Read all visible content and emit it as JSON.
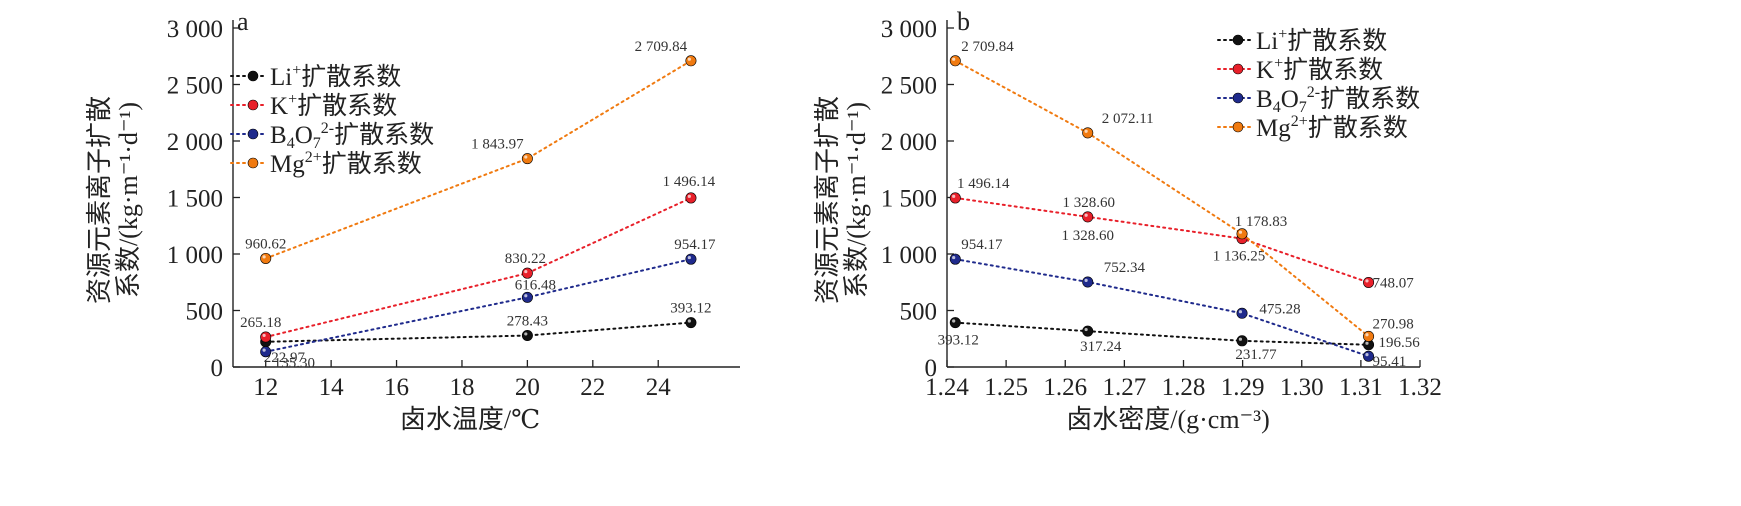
{
  "chart_data": [
    {
      "panel_label": "a",
      "type": "line",
      "xlabel": "卤水温度/℃",
      "ylabel_line1": "资源元素离子扩散",
      "ylabel_line2": "系数/(kg·m⁻¹·d⁻¹)",
      "xlim": [
        11,
        26.5
      ],
      "ylim": [
        0,
        3000
      ],
      "xticks": [
        12,
        14,
        16,
        18,
        20,
        22,
        24
      ],
      "xtick_labels": [
        "12",
        "14",
        "16",
        "18",
        "20",
        "22",
        "24"
      ],
      "yticks": [
        0,
        500,
        1000,
        1500,
        2000,
        2500,
        3000
      ],
      "ytick_labels": [
        "0",
        "500",
        "1 000",
        "1 500",
        "2 000",
        "2 500",
        "3 000"
      ],
      "legend_position": "top-left",
      "series": [
        {
          "name": "Li⁺扩散系数",
          "name_base": "Li",
          "name_sup": "+",
          "name_tail": "扩散系数",
          "color": "#111111",
          "x": [
            12,
            20,
            25
          ],
          "y": [
            222.97,
            278.43,
            393.12
          ],
          "labels": [
            "222.97",
            "278.43",
            "393.12"
          ]
        },
        {
          "name": "K⁺扩散系数",
          "name_base": "K",
          "name_sup": "+",
          "name_tail": "扩散系数",
          "color": "#e8202a",
          "x": [
            12,
            20,
            25
          ],
          "y": [
            265.18,
            830.22,
            1496.14
          ],
          "labels": [
            "265.18",
            "830.22",
            "1 496.14"
          ]
        },
        {
          "name": "B₄O₇²⁻扩散系数",
          "name_base": "B",
          "name_sub": "4",
          "name_mid": "O",
          "name_sub2": "7",
          "name_sup": "2-",
          "name_tail": "扩散系数",
          "color": "#1f2a8c",
          "x": [
            12,
            20,
            25
          ],
          "y": [
            135.3,
            616.48,
            954.17
          ],
          "labels": [
            "135.30",
            "616.48",
            "954.17"
          ]
        },
        {
          "name": "Mg²⁺扩散系数",
          "name_base": "Mg",
          "name_sup": "2+",
          "name_tail": "扩散系数",
          "color": "#f07a10",
          "x": [
            12,
            20,
            25
          ],
          "y": [
            960.62,
            1843.97,
            2709.84
          ],
          "labels": [
            "960.62",
            "1 843.97",
            "2 709.84"
          ]
        }
      ]
    },
    {
      "panel_label": "b",
      "type": "line",
      "xlabel": "卤水密度/(g·cm⁻³)",
      "ylabel_line1": "资源元素离子扩散",
      "ylabel_line2": "系数/(kg·m⁻¹·d⁻¹)",
      "xlim": [
        1.24,
        1.32
      ],
      "ylim": [
        0,
        3000
      ],
      "xticks": [
        1.24,
        1.25,
        1.26,
        1.27,
        1.28,
        1.29,
        1.3,
        1.31,
        1.32
      ],
      "xtick_labels": [
        "1.24",
        "1.25",
        "1.26",
        "1.27",
        "1.28",
        "1.29",
        "1.30",
        "1.31",
        "1.32"
      ],
      "yticks": [
        0,
        500,
        1000,
        1500,
        2000,
        2500,
        3000
      ],
      "ytick_labels": [
        "0",
        "500",
        "1 000",
        "1 500",
        "2 000",
        "2 500",
        "3 000"
      ],
      "legend_position": "top-right",
      "series": [
        {
          "name": "Li⁺扩散系数",
          "name_base": "Li",
          "name_sup": "+",
          "name_tail": "扩散系数",
          "color": "#111111",
          "x": [
            1.2414,
            1.2638,
            1.2899,
            1.3113
          ],
          "y": [
            393.12,
            317.24,
            231.77,
            196.56
          ],
          "labels": [
            "393.12",
            "317.24",
            "231.77",
            "196.56"
          ]
        },
        {
          "name": "K⁺扩散系数",
          "name_base": "K",
          "name_sup": "+",
          "name_tail": "扩散系数",
          "color": "#e8202a",
          "x": [
            1.2414,
            1.2638,
            1.2899,
            1.3113
          ],
          "y": [
            1496.14,
            1328.6,
            1136.25,
            748.07
          ],
          "labels": [
            "1 496.14",
            "1 328.60",
            "1 136.25",
            "748.07"
          ]
        },
        {
          "name": "B₄O₇²⁻扩散系数",
          "name_base": "B",
          "name_sub": "4",
          "name_mid": "O",
          "name_sub2": "7",
          "name_sup": "2-",
          "name_tail": "扩散系数",
          "color": "#1f2a8c",
          "x": [
            1.2414,
            1.2638,
            1.2899,
            1.3113
          ],
          "y": [
            954.17,
            752.34,
            475.28,
            95.41
          ],
          "labels": [
            "954.17",
            "752.34",
            "475.28",
            "95.41"
          ]
        },
        {
          "name": "Mg²⁺扩散系数",
          "name_base": "Mg",
          "name_sup": "2+",
          "name_tail": "扩散系数",
          "color": "#f07a10",
          "x": [
            1.2414,
            1.2638,
            1.2899,
            1.3113
          ],
          "y": [
            2709.84,
            2072.11,
            1178.83,
            270.98
          ],
          "labels": [
            "2 709.84",
            "2 072.11",
            "1 178.83",
            "270.98"
          ]
        }
      ],
      "extra_labels": [
        "1 328.60"
      ]
    }
  ]
}
